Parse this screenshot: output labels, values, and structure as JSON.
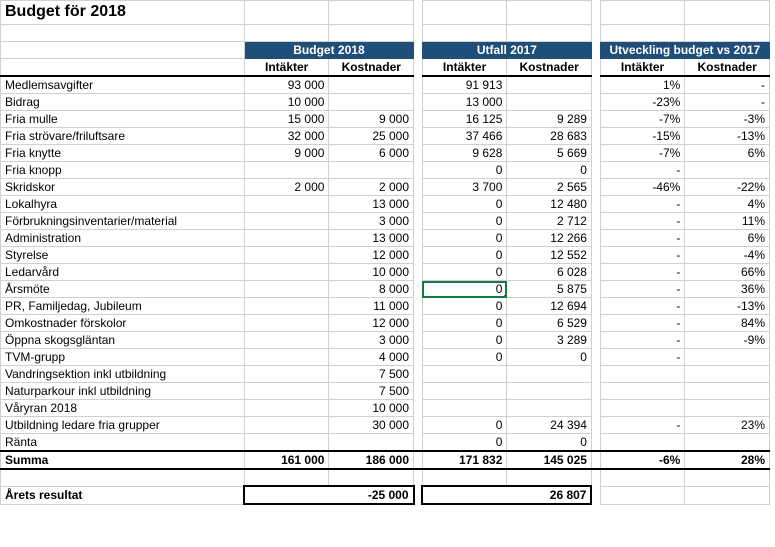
{
  "title": "Budget för 2018",
  "group_headers": [
    "Budget 2018",
    "Utfall 2017",
    "Utveckling budget vs 2017"
  ],
  "sub_headers": [
    "Intäkter",
    "Kostnader",
    "Intäkter",
    "Kostnader",
    "Intäkter",
    "Kostnader"
  ],
  "rows": [
    {
      "label": "Medlemsavgifter",
      "b_i": "93 000",
      "b_k": "",
      "u_i": "91 913",
      "u_k": "",
      "d_i": "1%",
      "d_k": "-"
    },
    {
      "label": "Bidrag",
      "b_i": "10 000",
      "b_k": "",
      "u_i": "13 000",
      "u_k": "",
      "d_i": "-23%",
      "d_k": "-"
    },
    {
      "label": "Fria mulle",
      "b_i": "15 000",
      "b_k": "9 000",
      "u_i": "16 125",
      "u_k": "9 289",
      "d_i": "-7%",
      "d_k": "-3%"
    },
    {
      "label": "Fria strövare/friluftsare",
      "b_i": "32 000",
      "b_k": "25 000",
      "u_i": "37 466",
      "u_k": "28 683",
      "d_i": "-15%",
      "d_k": "-13%"
    },
    {
      "label": "Fria knytte",
      "b_i": "9 000",
      "b_k": "6 000",
      "u_i": "9 628",
      "u_k": "5 669",
      "d_i": "-7%",
      "d_k": "6%"
    },
    {
      "label": "Fria knopp",
      "b_i": "",
      "b_k": "",
      "u_i": "0",
      "u_k": "0",
      "d_i": "-",
      "d_k": ""
    },
    {
      "label": "Skridskor",
      "b_i": "2 000",
      "b_k": "2 000",
      "u_i": "3 700",
      "u_k": "2 565",
      "d_i": "-46%",
      "d_k": "-22%"
    },
    {
      "label": "Lokalhyra",
      "b_i": "",
      "b_k": "13 000",
      "u_i": "0",
      "u_k": "12 480",
      "d_i": "-",
      "d_k": "4%"
    },
    {
      "label": "Förbrukningsinventarier/material",
      "b_i": "",
      "b_k": "3 000",
      "u_i": "0",
      "u_k": "2 712",
      "d_i": "-",
      "d_k": "11%"
    },
    {
      "label": "Administration",
      "b_i": "",
      "b_k": "13 000",
      "u_i": "0",
      "u_k": "12 266",
      "d_i": "-",
      "d_k": "6%"
    },
    {
      "label": "Styrelse",
      "b_i": "",
      "b_k": "12 000",
      "u_i": "0",
      "u_k": "12 552",
      "d_i": "-",
      "d_k": "-4%"
    },
    {
      "label": "Ledarvård",
      "b_i": "",
      "b_k": "10 000",
      "u_i": "0",
      "u_k": "6 028",
      "d_i": "-",
      "d_k": "66%"
    },
    {
      "label": "Årsmöte",
      "b_i": "",
      "b_k": "8 000",
      "u_i": "0",
      "u_k": "5 875",
      "d_i": "-",
      "d_k": "36%",
      "sel": true
    },
    {
      "label": "PR, Familjedag, Jubileum",
      "b_i": "",
      "b_k": "11 000",
      "u_i": "0",
      "u_k": "12 694",
      "d_i": "-",
      "d_k": "-13%"
    },
    {
      "label": "Omkostnader förskolor",
      "b_i": "",
      "b_k": "12 000",
      "u_i": "0",
      "u_k": "6 529",
      "d_i": "-",
      "d_k": "84%"
    },
    {
      "label": "Öppna skogsgläntan",
      "b_i": "",
      "b_k": "3 000",
      "u_i": "0",
      "u_k": "3 289",
      "d_i": "-",
      "d_k": "-9%"
    },
    {
      "label": "TVM-grupp",
      "b_i": "",
      "b_k": "4 000",
      "u_i": "0",
      "u_k": "0",
      "d_i": "-",
      "d_k": ""
    },
    {
      "label": "Vandringsektion inkl utbildning",
      "b_i": "",
      "b_k": "7 500",
      "u_i": "",
      "u_k": "",
      "d_i": "",
      "d_k": ""
    },
    {
      "label": "Naturparkour inkl utbildning",
      "b_i": "",
      "b_k": "7 500",
      "u_i": "",
      "u_k": "",
      "d_i": "",
      "d_k": ""
    },
    {
      "label": "Våryran 2018",
      "b_i": "",
      "b_k": "10 000",
      "u_i": "",
      "u_k": "",
      "d_i": "",
      "d_k": ""
    },
    {
      "label": "Utbildning ledare fria grupper",
      "b_i": "",
      "b_k": "30 000",
      "u_i": "0",
      "u_k": "24 394",
      "d_i": "-",
      "d_k": "23%"
    },
    {
      "label": "Ränta",
      "b_i": "",
      "b_k": "",
      "u_i": "0",
      "u_k": "0",
      "d_i": "",
      "d_k": ""
    }
  ],
  "sum": {
    "label": "Summa",
    "b_i": "161 000",
    "b_k": "186 000",
    "u_i": "171 832",
    "u_k": "145 025",
    "d_i": "-6%",
    "d_k": "28%"
  },
  "result": {
    "label": "Årets resultat",
    "budget": "-25 000",
    "utfall": "26 807"
  },
  "colors": {
    "header_bg": "#1f4e79",
    "header_fg": "#ffffff",
    "grid": "#d0d0d0",
    "selection": "#107c41"
  }
}
